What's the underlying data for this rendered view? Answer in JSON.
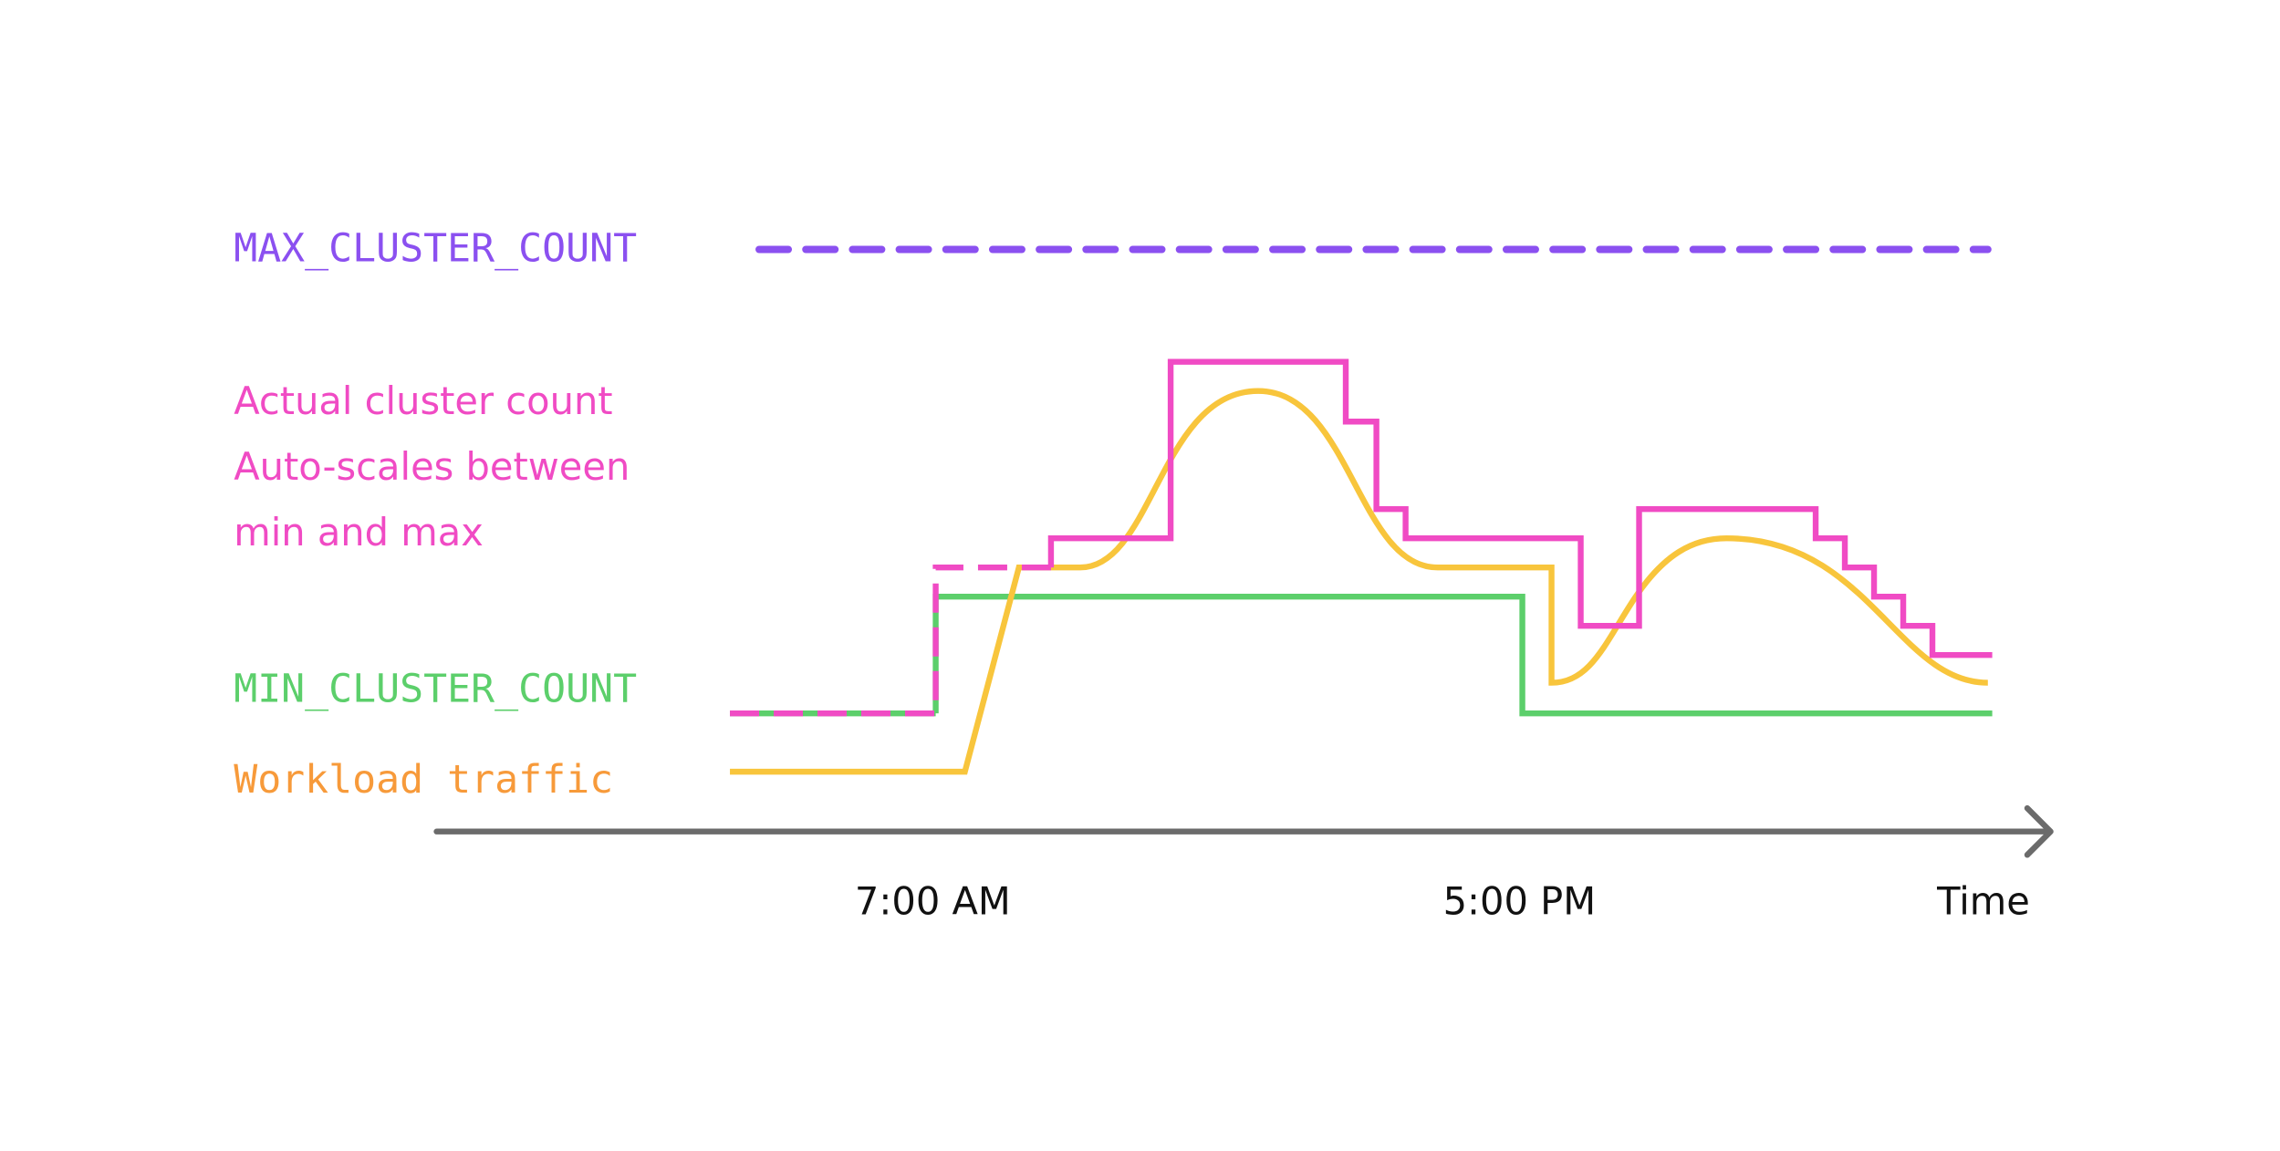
{
  "labels": {
    "max": "MAX_CLUSTER_COUNT",
    "actual": [
      "Actual cluster count",
      "Auto-scales between",
      "min and max"
    ],
    "min": "MIN_CLUSTER_COUNT",
    "workload": "Workload traffic"
  },
  "axis": {
    "ticks": [
      "7:00 AM",
      "5:00 PM"
    ],
    "label": "Time"
  }
}
